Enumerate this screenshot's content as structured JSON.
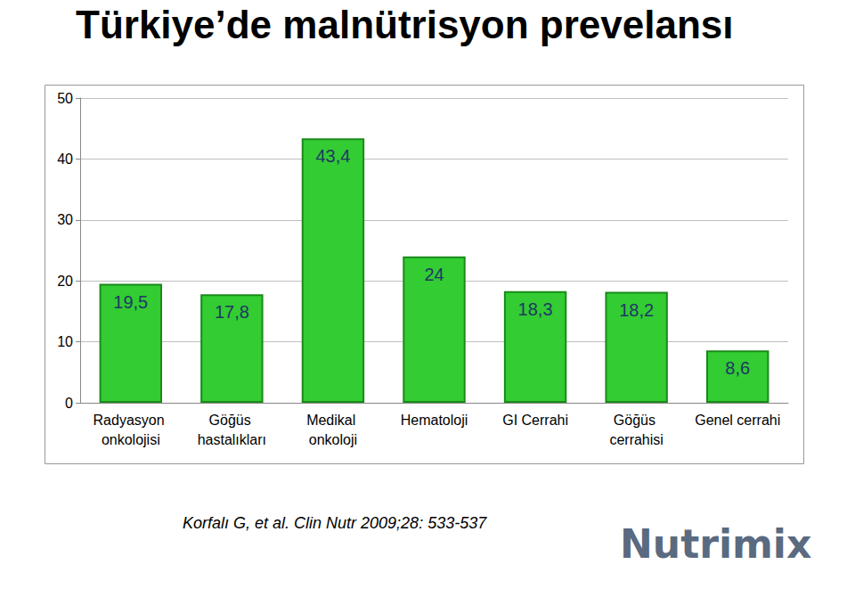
{
  "chart_data": {
    "type": "bar",
    "title": "Türkiye’de malnütrisyon prevelansı",
    "categories": [
      "Radyasyon onkolojisi",
      "Göğüs hastalıkları",
      "Medikal onkoloji",
      "Hematoloji",
      "GI Cerrahi",
      "Göğüs cerrahisi",
      "Genel cerrahi"
    ],
    "values": [
      19.5,
      17.8,
      43.4,
      24,
      18.3,
      18.2,
      8.6
    ],
    "value_labels": [
      "19,5",
      "17,8",
      "43,4",
      "24",
      "18,3",
      "18,2",
      "8,6"
    ],
    "color": "#33cc33",
    "ylim": [
      0,
      50
    ],
    "yticks": [
      0,
      10,
      20,
      30,
      40,
      50
    ],
    "grid": true,
    "data_labels": true,
    "annotations": [
      "Korfalı G, et al. Clin Nutr 2009;28: 533-537",
      "Nutrimix"
    ]
  }
}
